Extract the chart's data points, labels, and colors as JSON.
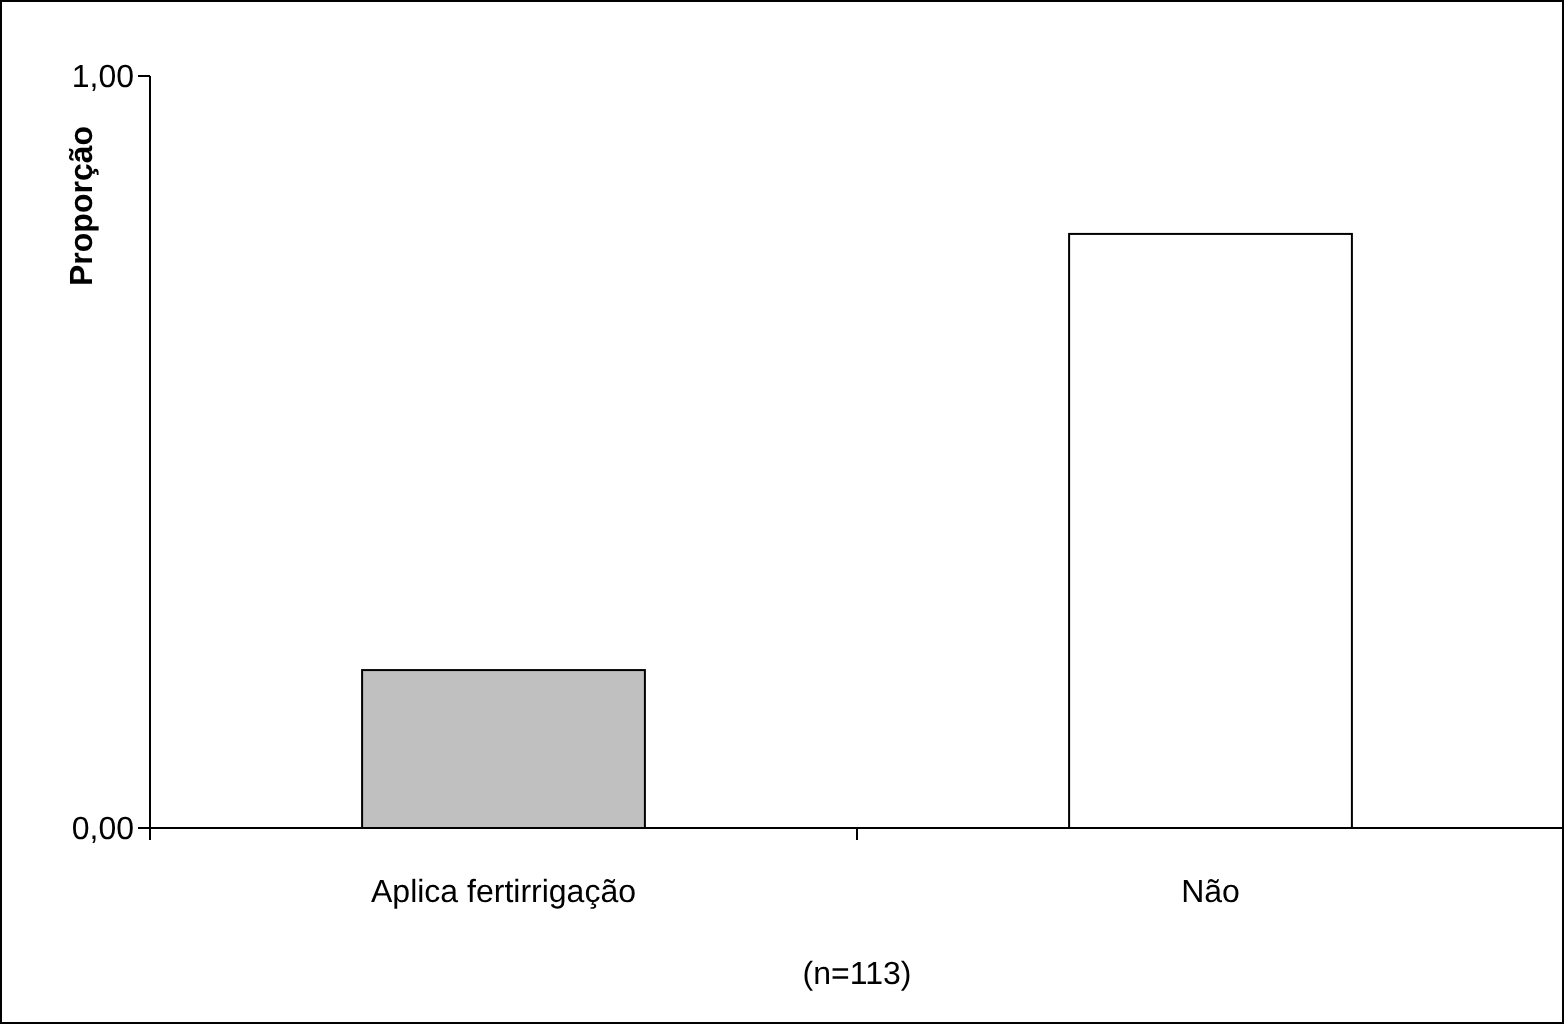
{
  "chart_data": {
    "type": "bar",
    "ylabel": "Proporção",
    "categories": [
      "Aplica fertirrigação",
      "Não"
    ],
    "values": [
      0.21,
      0.79
    ],
    "colors": [
      "#c0c0c0",
      "#ffffff"
    ],
    "ylim": [
      0,
      1
    ],
    "yticks": [
      {
        "value": 0,
        "label": "0,00"
      },
      {
        "value": 1,
        "label": "1,00"
      }
    ],
    "annotations": [
      "(n=113)"
    ]
  }
}
